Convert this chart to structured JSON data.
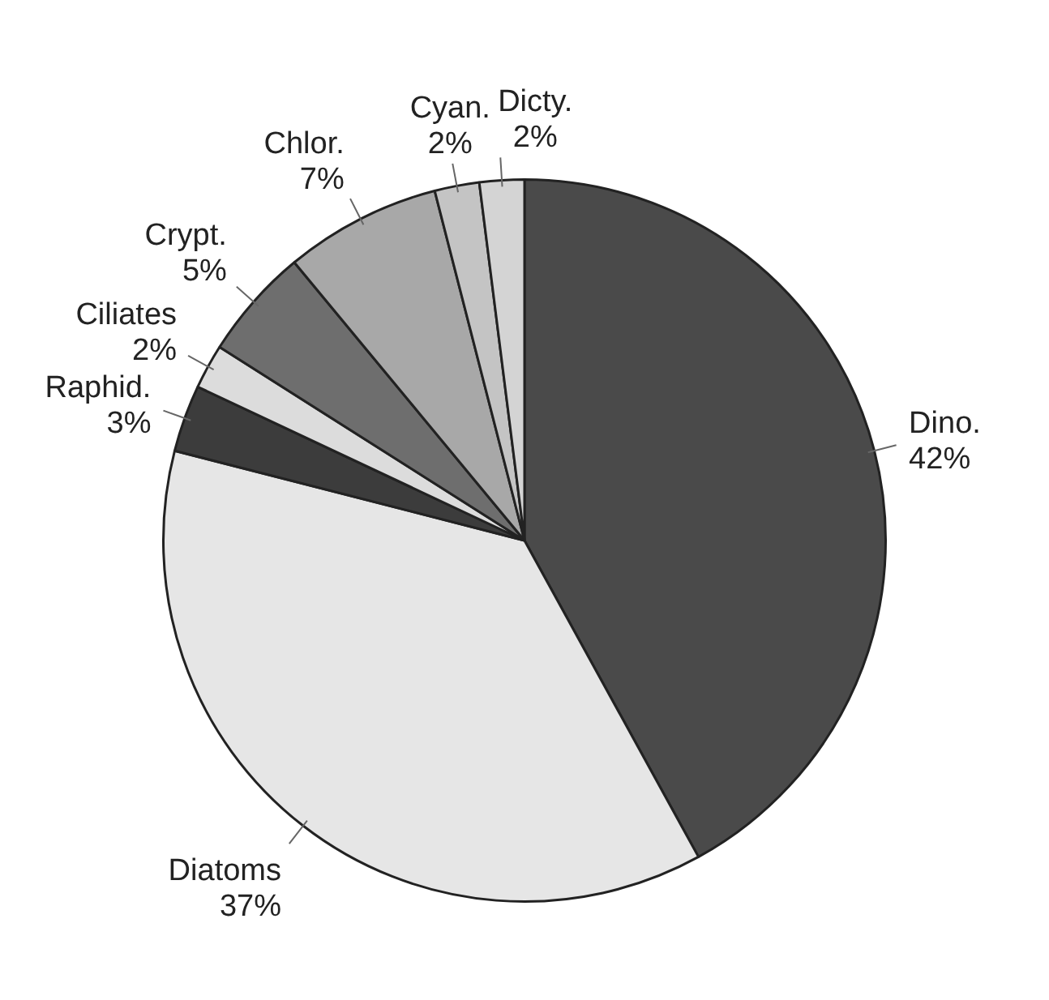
{
  "chart_data": {
    "type": "pie",
    "categories": [
      "Dino.",
      "Diatoms",
      "Raphid.",
      "Ciliates",
      "Crypt.",
      "Chlor.",
      "Cyan.",
      "Dicty."
    ],
    "values": [
      42,
      37,
      3,
      2,
      5,
      7,
      2,
      2
    ],
    "value_labels": [
      "42%",
      "37%",
      "3%",
      "2%",
      "5%",
      "7%",
      "2%",
      "2%"
    ],
    "colors": [
      "#4a4a4a",
      "#e6e6e6",
      "#3c3c3c",
      "#dcdcdc",
      "#6e6e6e",
      "#a8a8a8",
      "#c4c4c4",
      "#d4d4d4"
    ],
    "legend": false
  }
}
